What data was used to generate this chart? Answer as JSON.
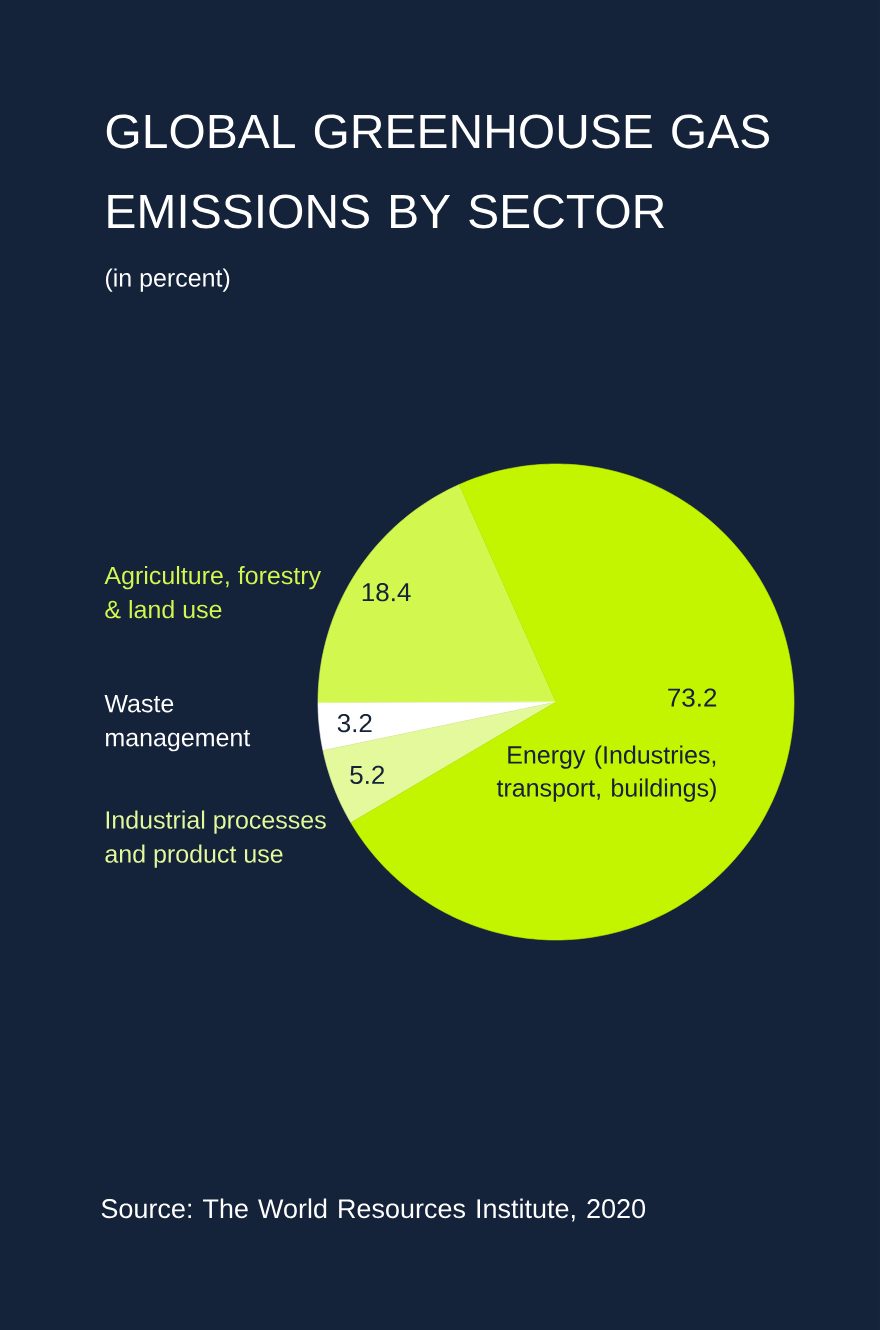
{
  "chart_data": {
    "type": "pie",
    "title": "GLOBAL GREENHOUSE GAS EMISSIONS BY SECTOR",
    "subtitle": "(in percent)",
    "categories": [
      "Agriculture, forestry & land use",
      "Waste management",
      "Industrial processes and product use",
      "Energy (Industries, transport, buildings)"
    ],
    "values": [
      18.4,
      3.2,
      5.2,
      73.2
    ],
    "colors": [
      "#d2f84f",
      "#ffffff",
      "#e3f99c",
      "#c4f500"
    ],
    "data_labels": true,
    "annotations": [
      "Source: The World Resources Institute, 2020"
    ]
  }
}
